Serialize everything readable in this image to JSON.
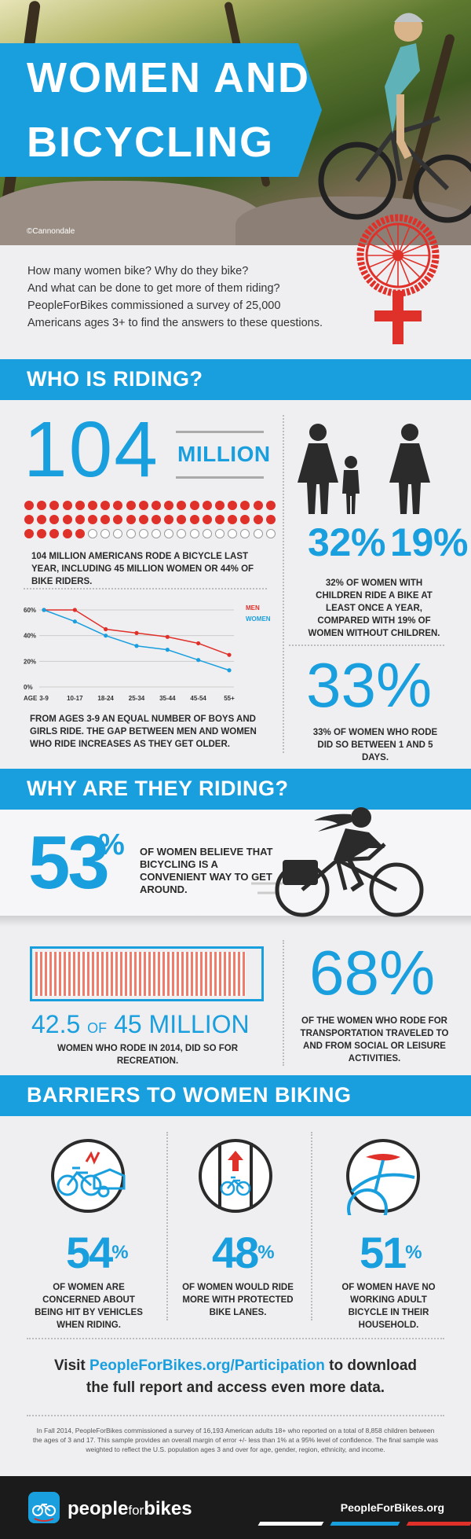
{
  "hero": {
    "title_line1": "WOMEN AND",
    "title_line2": "BICYCLING",
    "credit": "©Cannondale"
  },
  "intro": {
    "lines": [
      "How many women bike? Why do they bike?",
      "And what can be done to get more of them riding?",
      "PeopleForBikes commissioned a survey of 25,000",
      "Americans ages 3+ to find the answers to these questions."
    ]
  },
  "who": {
    "section_title": "WHO IS RIDING?",
    "big_number": "104",
    "big_unit": "MILLION",
    "dots": {
      "total": 60,
      "red": 45
    },
    "dots_caption": "104 MILLION AMERICANS RODE A BICYCLE LAST YEAR, INCLUDING 45 MILLION WOMEN OR 44% OF BIKE RIDERS.",
    "mothers_stat": "32%",
    "nonmothers_stat": "19%",
    "mothers_caption": "32% OF WOMEN WITH CHILDREN RIDE A BIKE AT LEAST ONCE A YEAR, COMPARED WITH 19% OF WOMEN WITHOUT CHILDREN.",
    "days_stat": "33%",
    "days_caption": "33% OF WOMEN WHO RODE DID SO BETWEEN 1 AND 5 DAYS.",
    "chart_caption": "FROM AGES 3-9 AN EQUAL NUMBER OF BOYS AND GIRLS RIDE. THE GAP BETWEEN MEN AND WOMEN WHO RIDE INCREASES AS THEY GET OLDER.",
    "age_label": "AGE"
  },
  "chart_data": {
    "type": "line",
    "categories": [
      "3-9",
      "10-17",
      "18-24",
      "25-34",
      "35-44",
      "45-54",
      "55+"
    ],
    "series": [
      {
        "name": "MEN",
        "color": "#e0302a",
        "values": [
          60,
          60,
          45,
          42,
          39,
          34,
          25
        ]
      },
      {
        "name": "WOMEN",
        "color": "#1a9fde",
        "values": [
          60,
          51,
          40,
          32,
          29,
          21,
          13
        ]
      }
    ],
    "ylim": [
      0,
      60
    ],
    "yticks": [
      "0%",
      "20%",
      "40%",
      "60%"
    ],
    "grid": true,
    "legend": "top-right"
  },
  "why": {
    "section_title": "WHY ARE THEY RIDING?",
    "convenient_stat": "53",
    "convenient_pct": "%",
    "convenient_caption": "OF WOMEN BELIEVE THAT BICYCLING IS A CONVENIENT WAY TO GET AROUND.",
    "recreation_part1": "42.5",
    "recreation_of": "OF",
    "recreation_part2": "45 MILLION",
    "recreation_fraction": 0.944,
    "recreation_caption": "WOMEN WHO RODE IN 2014, DID SO FOR RECREATION.",
    "social_stat": "68%",
    "social_caption": "OF THE WOMEN WHO RODE FOR TRANSPORTATION TRAVELED TO AND FROM SOCIAL OR LEISURE ACTIVITIES."
  },
  "barriers": {
    "section_title": "BARRIERS TO WOMEN BIKING",
    "items": [
      {
        "stat": "54",
        "caption": "OF WOMEN ARE CONCERNED ABOUT BEING HIT BY VEHICLES WHEN RIDING."
      },
      {
        "stat": "48",
        "caption": "OF WOMEN WOULD RIDE MORE WITH PROTECTED BIKE LANES."
      },
      {
        "stat": "51",
        "caption": "OF WOMEN HAVE NO WORKING ADULT BICYCLE IN THEIR HOUSEHOLD."
      }
    ],
    "pct": "%"
  },
  "cta": {
    "prefix": "Visit ",
    "link": "PeopleForBikes.org/Participation",
    "suffix": " to download",
    "line2": "the full report and access even more data."
  },
  "footnote": "In Fall 2014, PeopleForBikes commissioned a survey of 16,193 American adults 18+ who reported on a total of 8,858 children between the ages of 3 and 17. This sample provides an overall margin of error +/- less than 1% at a 95% level of confidence. The final sample was weighted to reflect the U.S. population ages 3 and over for age, gender, region, ethnicity, and income.",
  "footer": {
    "brand_people": "people",
    "brand_for": "for",
    "brand_bikes": "bikes",
    "url": "PeopleForBikes.org"
  },
  "colors": {
    "blue": "#1a9fde",
    "red": "#e0302a",
    "dark": "#1b1b1b"
  }
}
